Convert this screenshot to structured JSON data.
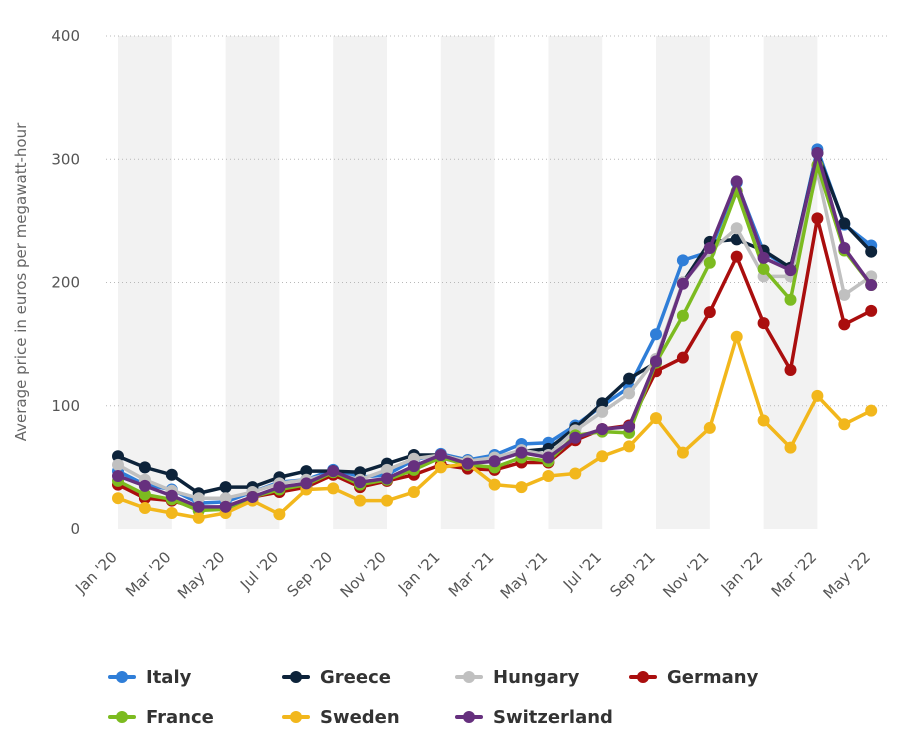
{
  "chart_data": {
    "type": "line",
    "title": "",
    "xlabel": "",
    "ylabel": "Average price in euros per megawatt-hour",
    "ylim": [
      0,
      400
    ],
    "yticks": [
      "0",
      "100",
      "200",
      "300",
      "400"
    ],
    "grid": true,
    "legend_position": "bottom",
    "x": [
      "Jan '20",
      "Feb '20",
      "Mar '20",
      "Apr '20",
      "May '20",
      "Jun '20",
      "Jul '20",
      "Aug '20",
      "Sep '20",
      "Oct '20",
      "Nov '20",
      "Dec '20",
      "Jan '21",
      "Feb '21",
      "Mar '21",
      "Apr '21",
      "May '21",
      "Jun '21",
      "Jul '21",
      "Aug '21",
      "Sep '21",
      "Oct '21",
      "Nov '21",
      "Dec '21",
      "Jan '22",
      "Feb '22",
      "Mar '22",
      "Apr '22",
      "May '22"
    ],
    "xtick_labels": [
      "Jan '20",
      "",
      "Mar '20",
      "",
      "May '20",
      "",
      "Jul '20",
      "",
      "Sep '20",
      "",
      "Nov '20",
      "",
      "Jan '21",
      "",
      "Mar '21",
      "",
      "May '21",
      "",
      "Jul '21",
      "",
      "Sep '21",
      "",
      "Nov '21",
      "",
      "Jan '22",
      "",
      "Mar '22",
      "",
      "May '22"
    ],
    "series": [
      {
        "name": "Italy",
        "color": "#2f7ed8",
        "values": [
          47,
          36,
          32,
          21,
          22,
          30,
          38,
          40,
          48,
          42,
          44,
          56,
          61,
          56,
          60,
          69,
          70,
          84,
          100,
          115,
          158,
          218,
          225,
          281,
          225,
          211,
          308,
          247,
          230
        ]
      },
      {
        "name": "Greece",
        "color": "#0d233a",
        "values": [
          59,
          50,
          44,
          29,
          34,
          34,
          42,
          47,
          47,
          46,
          53,
          60,
          60,
          55,
          57,
          63,
          65,
          82,
          102,
          122,
          135,
          200,
          233,
          235,
          226,
          212,
          305,
          248,
          225
        ]
      },
      {
        "name": "Hungary",
        "color": "#c0c0c0",
        "values": [
          52,
          40,
          31,
          25,
          25,
          30,
          37,
          40,
          45,
          40,
          48,
          57,
          60,
          55,
          58,
          64,
          60,
          80,
          95,
          110,
          138,
          200,
          225,
          244,
          205,
          205,
          290,
          190,
          205
        ]
      },
      {
        "name": "Germany",
        "color": "#aa0e0e",
        "values": [
          36,
          25,
          23,
          17,
          18,
          26,
          30,
          34,
          44,
          34,
          39,
          44,
          52,
          49,
          48,
          54,
          54,
          72,
          81,
          84,
          128,
          139,
          176,
          221,
          167,
          129,
          252,
          166,
          177
        ]
      },
      {
        "name": "France",
        "color": "#7cbb20",
        "values": [
          39,
          28,
          24,
          15,
          16,
          26,
          32,
          36,
          46,
          36,
          40,
          48,
          58,
          52,
          50,
          58,
          55,
          76,
          79,
          78,
          135,
          173,
          216,
          274,
          211,
          186,
          295,
          226,
          198
        ]
      },
      {
        "name": "Sweden",
        "color": "#f2b71c",
        "values": [
          25,
          17,
          13,
          9,
          13,
          23,
          12,
          32,
          33,
          23,
          23,
          30,
          50,
          53,
          36,
          34,
          43,
          45,
          59,
          67,
          90,
          62,
          82,
          156,
          88,
          66,
          108,
          85,
          96
        ]
      },
      {
        "name": "Switzerland",
        "color": "#66307e",
        "values": [
          43,
          35,
          27,
          18,
          18,
          26,
          34,
          37,
          47,
          38,
          41,
          51,
          60,
          53,
          55,
          62,
          58,
          74,
          81,
          83,
          136,
          199,
          228,
          282,
          220,
          210,
          305,
          228,
          198
        ]
      }
    ]
  },
  "legend": {
    "items": [
      {
        "label": "Italy",
        "color": "#2f7ed8"
      },
      {
        "label": "Greece",
        "color": "#0d233a"
      },
      {
        "label": "Hungary",
        "color": "#c0c0c0"
      },
      {
        "label": "Germany",
        "color": "#aa0e0e"
      },
      {
        "label": "France",
        "color": "#7cbb20"
      },
      {
        "label": "Sweden",
        "color": "#f2b71c"
      },
      {
        "label": "Switzerland",
        "color": "#66307e"
      }
    ]
  }
}
